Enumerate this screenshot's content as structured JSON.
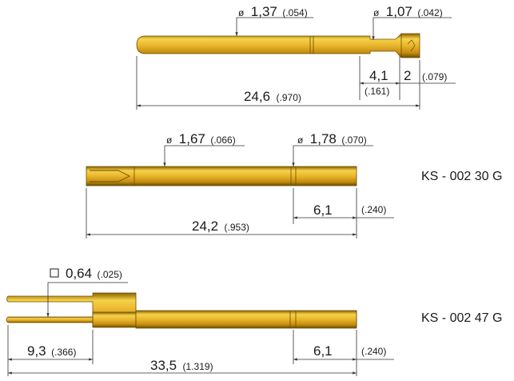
{
  "colors": {
    "gold_light": "#f6d24a",
    "gold_mid": "#d9a21a",
    "gold_dark": "#8a6200",
    "outline": "#6b4e00",
    "line": "#333333",
    "text": "#1a1a1a"
  },
  "probe1": {
    "shaft_diameter": {
      "value": "1,37",
      "inch": "(.054)",
      "symbol": "ø"
    },
    "head_diameter": {
      "value": "1,07",
      "inch": "(.042)",
      "symbol": "ø"
    },
    "dim_a": {
      "value": "4,1",
      "inch": "(.161)"
    },
    "dim_b": {
      "value": "2",
      "inch": "(.079)"
    },
    "overall_length": {
      "value": "24,6",
      "inch": "(.970)"
    }
  },
  "probe2": {
    "label": "KS - 002 30 G",
    "shaft_diameter": {
      "value": "1,67",
      "inch": "(.066)",
      "symbol": "ø"
    },
    "collar_diameter": {
      "value": "1,78",
      "inch": "(.070)",
      "symbol": "ø"
    },
    "dim_a": {
      "value": "6,1",
      "inch": "(.240)"
    },
    "overall_length": {
      "value": "24,2",
      "inch": "(.953)"
    }
  },
  "probe3": {
    "label": "KS - 002 47 G",
    "pin_size": {
      "value": "0,64",
      "inch": "(.025)",
      "symbol": "square"
    },
    "dim_tail": {
      "value": "9,3",
      "inch": "(.366)"
    },
    "dim_a": {
      "value": "6,1",
      "inch": "(.240)"
    },
    "overall_length": {
      "value": "33,5",
      "inch": "(1.319)"
    }
  }
}
